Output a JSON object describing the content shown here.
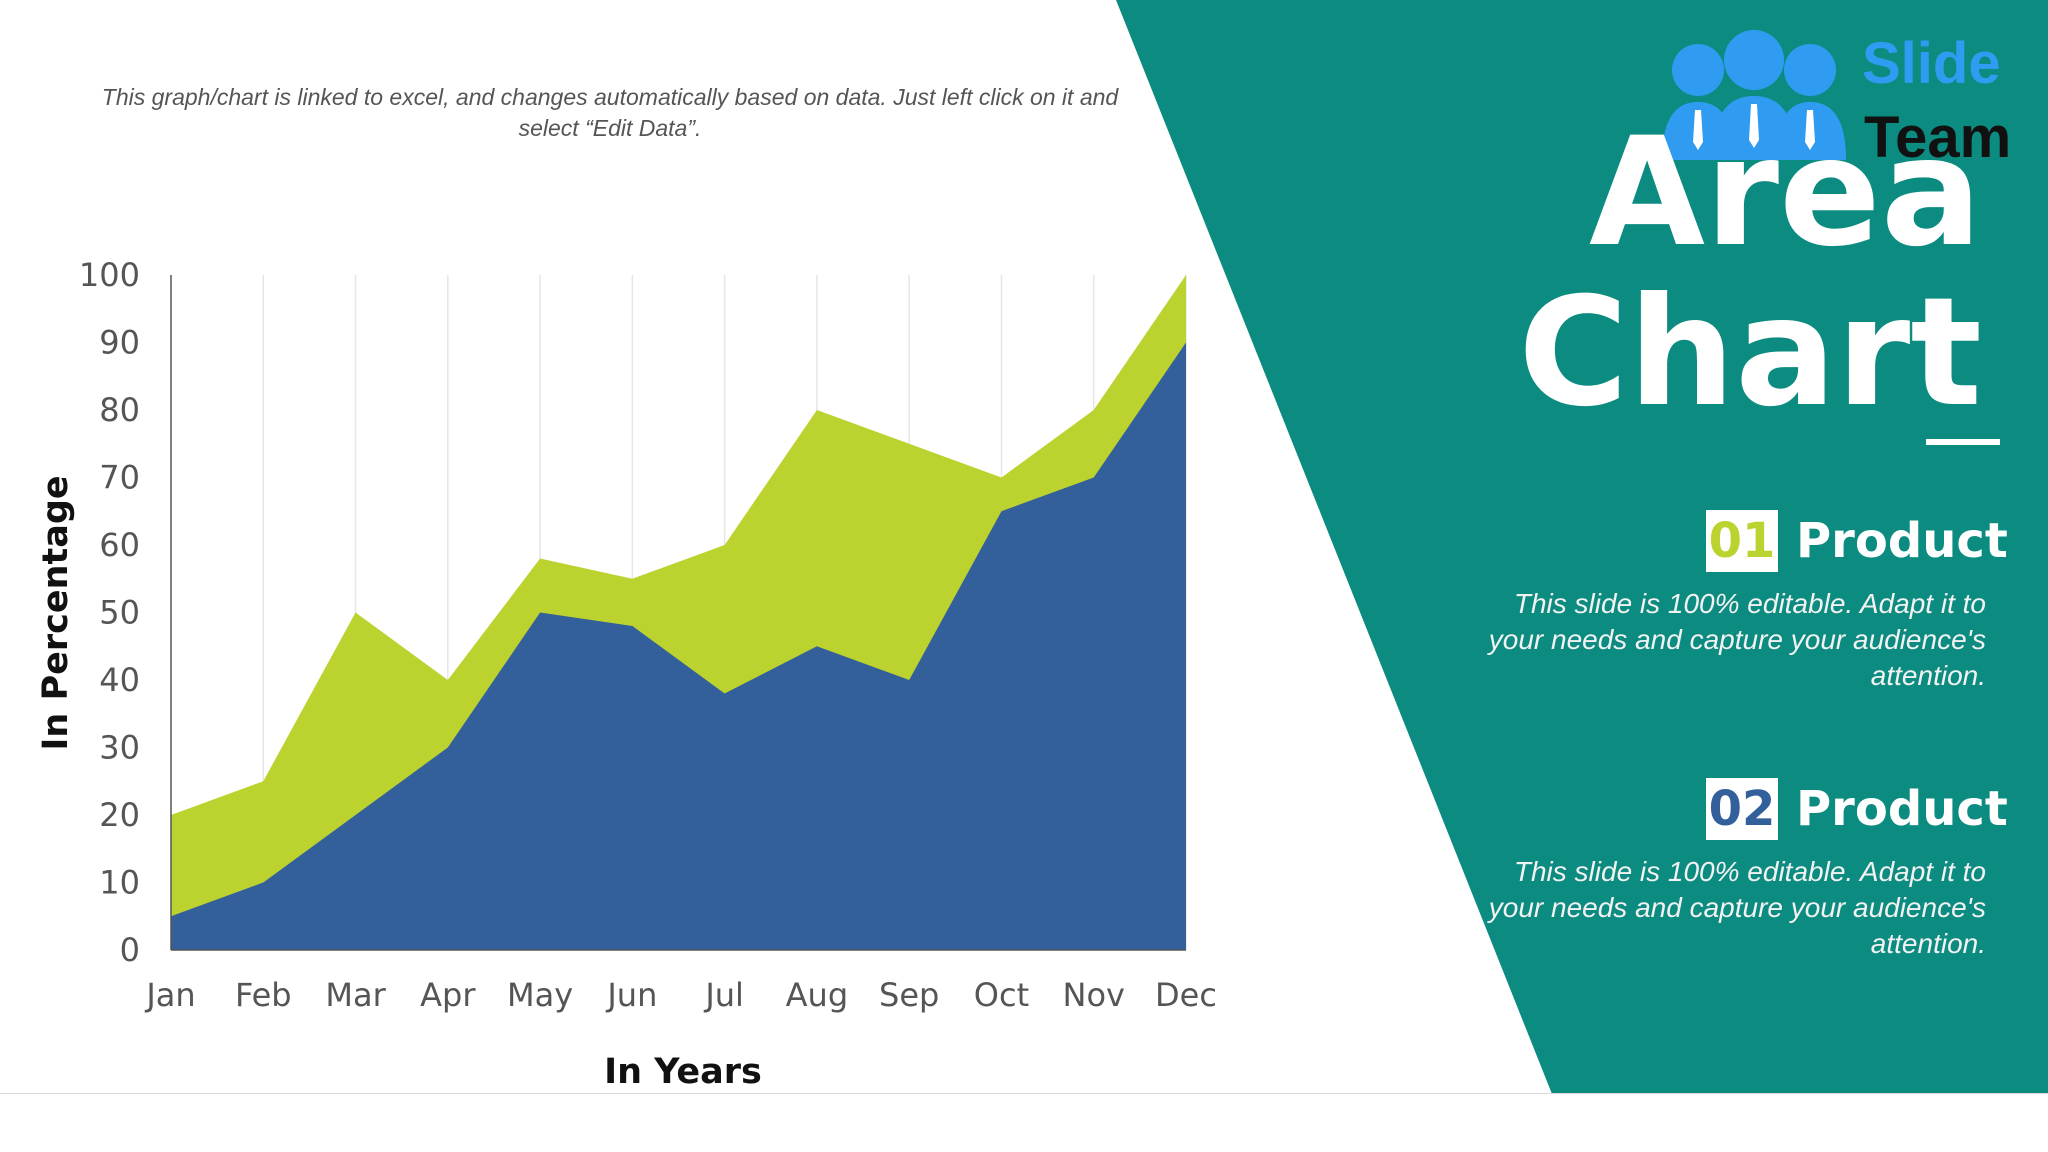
{
  "colors": {
    "background": "#ffffff",
    "panel": "#0c8c80",
    "product_1": "#bcd22f",
    "product_2": "#33609a",
    "logo_blue": "#2f9cf2"
  },
  "instruction": "This graph/chart is linked to excel, and changes automatically based on data. Just left click on it and select “Edit Data”.",
  "logo": {
    "word1": "Slide",
    "word2": "Team",
    "icon": "people-group-icon"
  },
  "title": {
    "line1": "Area",
    "line2": "Chart"
  },
  "products": [
    {
      "number": "01",
      "label": "Product",
      "description": "This slide is 100% editable. Adapt it to your needs and capture your audience's attention."
    },
    {
      "number": "02",
      "label": "Product",
      "description": "This slide is 100% editable. Adapt it to your needs and capture your audience's attention."
    }
  ],
  "chart_data": {
    "type": "area",
    "stacked": false,
    "categories": [
      "Jan",
      "Feb",
      "Mar",
      "Apr",
      "May",
      "Jun",
      "Jul",
      "Aug",
      "Sep",
      "Oct",
      "Nov",
      "Dec"
    ],
    "series": [
      {
        "name": "Product 01",
        "color": "#bcd22f",
        "values": [
          20,
          25,
          50,
          40,
          58,
          55,
          60,
          80,
          75,
          70,
          80,
          100
        ]
      },
      {
        "name": "Product 02",
        "color": "#33609a",
        "values": [
          5,
          10,
          20,
          30,
          50,
          48,
          38,
          45,
          40,
          65,
          70,
          90
        ]
      }
    ],
    "xlabel": "In Years",
    "ylabel": "In Percentage",
    "ylim": [
      0,
      100
    ],
    "yticks": [
      0,
      10,
      20,
      30,
      40,
      50,
      60,
      70,
      80,
      90,
      100
    ],
    "grid": "vertical",
    "legend": "none"
  }
}
